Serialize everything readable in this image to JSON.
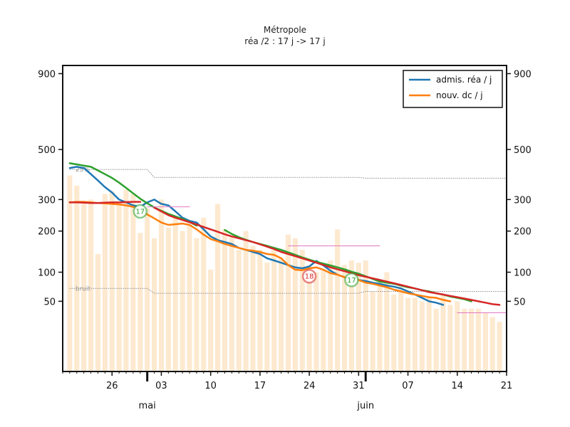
{
  "chart_data": {
    "type": "line",
    "title": "Métropole",
    "subtitle": "réa /2 : 17 j -> 17 j",
    "y_scale": "sqrt",
    "ylim": [
      0,
      950
    ],
    "y_ticks": [
      50,
      100,
      200,
      300,
      500,
      900
    ],
    "x_tick_labels": [
      "26",
      "03",
      "10",
      "17",
      "24",
      "31",
      "07",
      "14",
      "21"
    ],
    "x_tick_dates": [
      "2020-04-26",
      "2020-05-03",
      "2020-05-10",
      "2020-05-17",
      "2020-05-24",
      "2020-05-31",
      "2020-06-07",
      "2020-06-14",
      "2020-06-21"
    ],
    "month_labels": [
      {
        "label": "mai",
        "date": "2020-05-01"
      },
      {
        "label": "juin",
        "date": "2020-06-01"
      }
    ],
    "x_range": [
      "2020-04-19",
      "2020-06-21"
    ],
    "legend": {
      "position": "top-right",
      "entries": [
        {
          "label": "admis. réa / j",
          "color": "#1f77b4"
        },
        {
          "label": "nouv. dc / j",
          "color": "#ff7f0e"
        }
      ]
    },
    "reference_lines": [
      {
        "label": "25%",
        "color": "#9a9a9a",
        "x_start": "2020-04-20",
        "x_end": "2020-06-21",
        "values": [
          414,
          414,
          414,
          414,
          414,
          414,
          414,
          414,
          414,
          414,
          414,
          414,
          382,
          382,
          382,
          382,
          382,
          382,
          382,
          382,
          382,
          382,
          382,
          382,
          382,
          382,
          382,
          382,
          382,
          382,
          382,
          382,
          382,
          382,
          382,
          382,
          382,
          382,
          382,
          382,
          382,
          382,
          379,
          379,
          379,
          379,
          379,
          379,
          379,
          379,
          379,
          379,
          379,
          379,
          379,
          379,
          379,
          379,
          379,
          379,
          379,
          379,
          379
        ]
      },
      {
        "label": "bruit",
        "color": "#9a9a9a",
        "x_start": "2020-04-20",
        "x_end": "2020-06-21",
        "values": [
          70,
          70,
          70,
          70,
          70,
          70,
          70,
          70,
          70,
          70,
          70,
          70,
          62,
          62,
          62,
          62,
          62,
          62,
          62,
          62,
          62,
          62,
          62,
          62,
          62,
          62,
          62,
          62,
          62,
          62,
          62,
          62,
          62,
          62,
          62,
          62,
          62,
          62,
          62,
          62,
          62,
          62,
          65,
          65,
          65,
          65,
          65,
          65,
          65,
          65,
          65,
          65,
          65,
          65,
          65,
          65,
          65,
          65,
          65,
          65,
          65,
          65,
          65
        ]
      }
    ],
    "bars": {
      "color": "#fde9cf",
      "x_start": "2020-04-20",
      "values": [
        390,
        350,
        290,
        300,
        140,
        320,
        330,
        290,
        335,
        320,
        195,
        270,
        180,
        300,
        210,
        240,
        200,
        220,
        180,
        240,
        105,
        285,
        205,
        185,
        150,
        200,
        160,
        150,
        120,
        150,
        130,
        190,
        180,
        150,
        115,
        100,
        105,
        125,
        205,
        115,
        125,
        120,
        125,
        65,
        85,
        100,
        60,
        75,
        55,
        55,
        50,
        55,
        40,
        60,
        45,
        50,
        40,
        40,
        40,
        35,
        30,
        25
      ]
    },
    "series": [
      {
        "name": "admis. réa / j",
        "color": "#1f77b4",
        "x_start": "2020-04-20",
        "values": [
          420,
          425,
          420,
          395,
          370,
          345,
          325,
          300,
          290,
          280,
          275,
          290,
          300,
          285,
          280,
          260,
          240,
          230,
          225,
          205,
          185,
          175,
          170,
          165,
          155,
          150,
          145,
          140,
          130,
          125,
          120,
          115,
          110,
          108,
          112,
          124,
          114,
          103,
          95,
          90,
          88,
          85,
          83,
          80,
          78,
          75,
          73,
          70,
          65,
          60,
          55,
          50,
          48,
          45
        ]
      },
      {
        "name": "nouv. dc / j",
        "color": "#ff7f0e",
        "x_start": "2020-04-20",
        "values": [
          290,
          292,
          292,
          290,
          288,
          287,
          285,
          283,
          280,
          275,
          265,
          250,
          238,
          225,
          218,
          220,
          222,
          218,
          205,
          190,
          178,
          172,
          165,
          160,
          155,
          150,
          148,
          145,
          140,
          138,
          130,
          115,
          105,
          104,
          108,
          110,
          105,
          98,
          95,
          90,
          88,
          85,
          80,
          78,
          75,
          72,
          68,
          65,
          62,
          60,
          58,
          56,
          55,
          52,
          50
        ]
      },
      {
        "color": "#2ca02c",
        "x_start": "2020-04-20",
        "values": [
          440,
          435,
          430,
          425,
          410,
          395,
          380,
          362,
          342,
          322,
          303,
          287,
          273,
          262,
          252,
          244,
          236,
          227,
          216,
          null,
          null,
          null,
          203,
          192,
          183,
          176,
          170,
          165,
          160,
          155,
          150,
          144,
          138,
          132,
          127,
          122,
          118,
          114,
          110,
          106,
          101,
          97,
          92,
          87,
          82,
          80,
          78,
          75,
          72,
          70,
          67,
          65,
          62,
          60,
          57,
          55,
          53,
          50
        ]
      },
      {
        "color": "#d62728",
        "x_start": "2020-04-20",
        "values": [
          290,
          290,
          289,
          288,
          288,
          289,
          290,
          290,
          291,
          292,
          292,
          null,
          272,
          260,
          248,
          240,
          233,
          226,
          219,
          212,
          205,
          198,
          191,
          185,
          180,
          175,
          170,
          164,
          158,
          152,
          145,
          140,
          135,
          130,
          125,
          120,
          115,
          110,
          106,
          102,
          98,
          94,
          91,
          88,
          85,
          82,
          79,
          76,
          73,
          70,
          67,
          64,
          62,
          60,
          58,
          56,
          54,
          52,
          50,
          48,
          46,
          45
        ]
      },
      {
        "color": "#e377c2",
        "x_start": "2020-04-20",
        "values": [
          null,
          null,
          null,
          null,
          null,
          null,
          null,
          null,
          null,
          null,
          null,
          275,
          275,
          275,
          275,
          275,
          275,
          275,
          null,
          null,
          null,
          null,
          null,
          null,
          null,
          null,
          null,
          null,
          null,
          null,
          null,
          160,
          160,
          160,
          160,
          160,
          160,
          160,
          160,
          160,
          160,
          160,
          160,
          160,
          160,
          null,
          null,
          null,
          null,
          null,
          null,
          null,
          null,
          null,
          null,
          35,
          35,
          35,
          35,
          35,
          35,
          35,
          35
        ]
      }
    ],
    "markers": [
      {
        "label": "17",
        "color": "#2ca02c",
        "date": "2020-04-30",
        "value": 260
      },
      {
        "label": "18",
        "color": "#d62728",
        "date": "2020-05-24",
        "value": 92
      },
      {
        "label": "17",
        "color": "#2ca02c",
        "date": "2020-05-30",
        "value": 85
      }
    ]
  }
}
